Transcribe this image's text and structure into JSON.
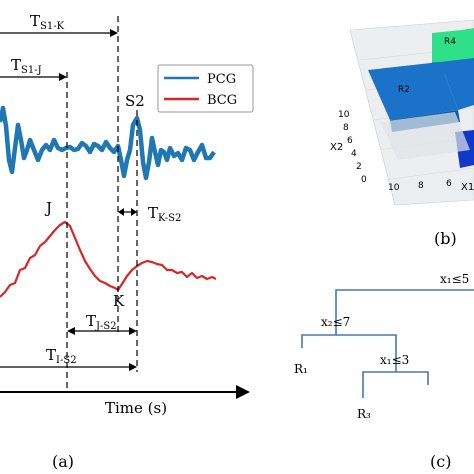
{
  "panel_a": {
    "label": "(a)",
    "legend": [
      {
        "name": "PCG",
        "color": "#1f77b4"
      },
      {
        "name": "BCG",
        "color": "#d62728"
      }
    ],
    "intervals": {
      "s1k": {
        "main": "T",
        "sub": "S1-K"
      },
      "s1j": {
        "main": "T",
        "sub": "S1-J"
      },
      "ks2": {
        "main": "T",
        "sub": "K-S2"
      },
      "js2": {
        "main": "T",
        "sub": "J-S2"
      },
      "is2": {
        "main": "T",
        "sub": "I-S2"
      }
    },
    "points": {
      "s2": "S2",
      "j": "J",
      "k": "K"
    },
    "time_axis_label": "Time (s)"
  },
  "panel_b": {
    "label": "(b)",
    "regions": [
      "R2",
      "R4"
    ],
    "axis_labels": {
      "x2": "X2",
      "x1": "X1"
    },
    "x2_ticks": [
      "10",
      "8",
      "6",
      "4",
      "2",
      "0"
    ],
    "x1_ticks": [
      "10",
      "8",
      "6"
    ]
  },
  "panel_c": {
    "label": "(c)",
    "splits": [
      {
        "text": "x₁≤5"
      },
      {
        "text": "x₂≤7"
      },
      {
        "text": "x₁≤3"
      }
    ],
    "leaves": [
      "R₁",
      "R₃"
    ]
  },
  "colors": {
    "pcg": "#1f77b4",
    "bcg": "#d62728",
    "tree": "#4a78a8",
    "region_blue": "#1a73c9",
    "region_green": "#2fe08a"
  }
}
